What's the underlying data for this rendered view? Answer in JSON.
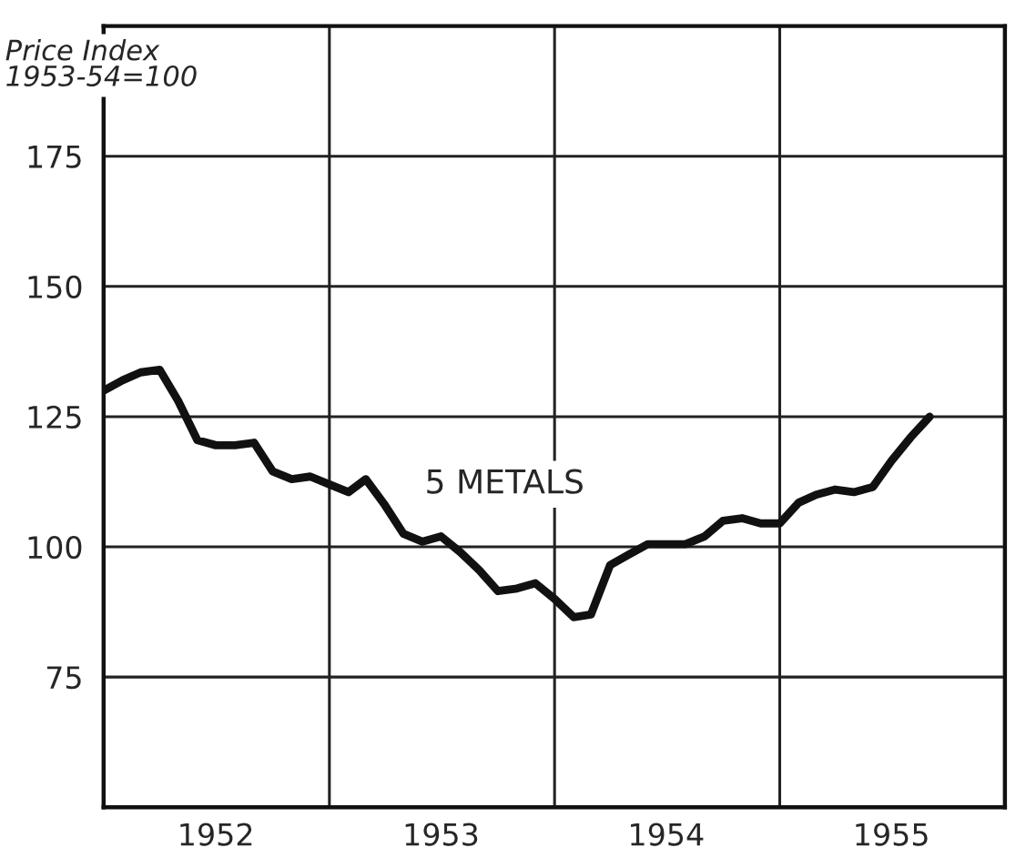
{
  "chart_data": {
    "type": "line",
    "ylabel": "Price Index\n1953-54=100",
    "x": [
      "1952-01",
      "1952-02",
      "1952-03",
      "1952-04",
      "1952-05",
      "1952-06",
      "1952-07",
      "1952-08",
      "1952-09",
      "1952-10",
      "1952-11",
      "1952-12",
      "1953-01",
      "1953-02",
      "1953-03",
      "1953-04",
      "1953-05",
      "1953-06",
      "1953-07",
      "1953-08",
      "1953-09",
      "1953-10",
      "1953-11",
      "1953-12",
      "1954-01",
      "1954-02",
      "1954-03",
      "1954-04",
      "1954-05",
      "1954-06",
      "1954-07",
      "1954-08",
      "1954-09",
      "1954-10",
      "1954-11",
      "1954-12",
      "1955-01",
      "1955-02",
      "1955-03",
      "1955-04",
      "1955-05",
      "1955-06",
      "1955-07",
      "1955-08",
      "1955-09"
    ],
    "series": [
      {
        "name": "5 METALS",
        "color": "#111111",
        "values": [
          130,
          132,
          133.5,
          134,
          128,
          120.5,
          119.5,
          119.5,
          120,
          114.5,
          113,
          113.5,
          112,
          110.5,
          113,
          108,
          102.5,
          101,
          102,
          99,
          95.5,
          91.5,
          92,
          93,
          90,
          86.5,
          87,
          96.5,
          98.5,
          100.5,
          100.5,
          100.5,
          102,
          105,
          105.5,
          104.5,
          104.5,
          108.5,
          110,
          111,
          110.5,
          111.5,
          116.5,
          121,
          125
        ]
      }
    ],
    "xlim": [
      "1952-01",
      "1956-01"
    ],
    "xticks": [
      {
        "value": "1952-07",
        "label": "1952"
      },
      {
        "value": "1953-01",
        "label": null
      },
      {
        "value": "1953-07",
        "label": "1953"
      },
      {
        "value": "1954-01",
        "label": null
      },
      {
        "value": "1954-07",
        "label": "1954"
      },
      {
        "value": "1955-01",
        "label": null
      },
      {
        "value": "1955-07",
        "label": "1955"
      }
    ],
    "ylim": [
      50,
      200
    ],
    "yticks": [
      75,
      100,
      125,
      150,
      175
    ],
    "grid": true,
    "marker": "none",
    "line_style": "solid"
  }
}
